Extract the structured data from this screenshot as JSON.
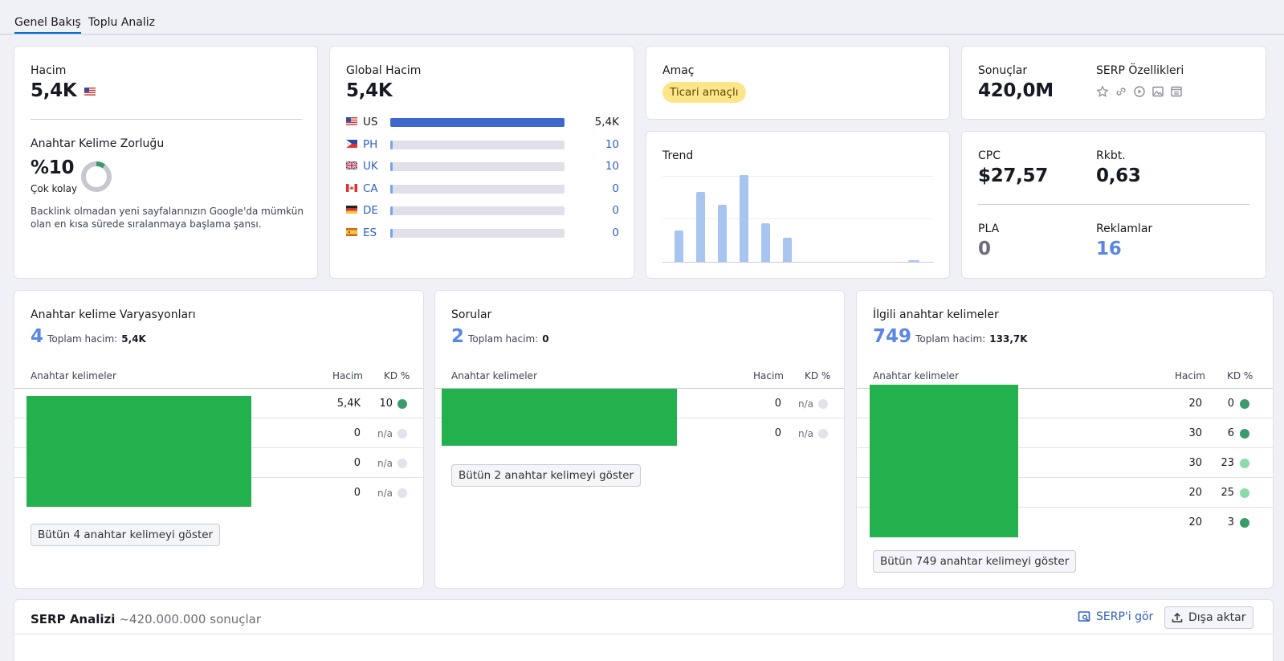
{
  "tabs": [
    "Genel Bakış",
    "Toplu Analiz"
  ],
  "volume": {
    "label": "Hacim",
    "value": "5,4K"
  },
  "kd": {
    "label": "Anahtar Kelime Zorluğu",
    "value": "%10",
    "level": "Çok kolay",
    "percent": 10,
    "description": "Backlink olmadan yeni sayfalarınızın Google'da mümkün olan en kısa sürede sıralanmaya başlama şansı."
  },
  "global_volume": {
    "label": "Global Hacim",
    "value": "5,4K",
    "countries": [
      {
        "code": "US",
        "value": "5,4K",
        "share": 1.0
      },
      {
        "code": "PH",
        "value": "10",
        "share": 0.002
      },
      {
        "code": "UK",
        "value": "10",
        "share": 0.002
      },
      {
        "code": "CA",
        "value": "0",
        "share": 0
      },
      {
        "code": "DE",
        "value": "0",
        "share": 0
      },
      {
        "code": "ES",
        "value": "0",
        "share": 0
      }
    ]
  },
  "intent": {
    "label": "Amaç",
    "badge": "Ticari amaçlı"
  },
  "trend": {
    "label": "Trend",
    "levels": [
      0.36,
      0.81,
      0.66,
      1.0,
      0.44,
      0.28,
      0,
      0,
      0,
      0,
      0,
      0.02
    ]
  },
  "results": {
    "label": "Sonuçlar",
    "value": "420,0M"
  },
  "serp_features": {
    "label": "SERP Özellikleri",
    "icons": [
      "star-icon",
      "link-icon",
      "play-icon",
      "image-icon",
      "ads-icon"
    ]
  },
  "cpc": {
    "label": "CPC",
    "value": "$27,57"
  },
  "competition": {
    "label": "Rkbt.",
    "value": "0,63"
  },
  "pla": {
    "label": "PLA",
    "value": "0"
  },
  "ads": {
    "label": "Reklamlar",
    "value": "16"
  },
  "variations": {
    "title": "Anahtar kelime Varyasyonları",
    "count": "4",
    "total_label": "Toplam hacim:",
    "total_value": "5,4K",
    "headers": [
      "Anahtar kelimeler",
      "Hacim",
      "KD %"
    ],
    "rows": [
      {
        "volume": "5,4K",
        "kd": "10"
      },
      {
        "volume": "0",
        "kd": "n/a"
      },
      {
        "volume": "0",
        "kd": "n/a"
      },
      {
        "volume": "0",
        "kd": "n/a"
      }
    ],
    "button": "Bütün 4 anahtar kelimeyi göster"
  },
  "questions": {
    "title": "Sorular",
    "count": "2",
    "total_label": "Toplam hacim:",
    "total_value": "0",
    "headers": [
      "Anahtar kelimeler",
      "Hacim",
      "KD %"
    ],
    "rows": [
      {
        "volume": "0",
        "kd": "n/a"
      },
      {
        "volume": "0",
        "kd": "n/a"
      }
    ],
    "button": "Bütün 2 anahtar kelimeyi göster"
  },
  "related": {
    "title": "İlgili anahtar kelimeler",
    "count": "749",
    "total_label": "Toplam hacim:",
    "total_value": "133,7K",
    "headers": [
      "Anahtar kelimeler",
      "Hacim",
      "KD %"
    ],
    "rows": [
      {
        "volume": "20",
        "kd": "0"
      },
      {
        "volume": "30",
        "kd": "6"
      },
      {
        "volume": "30",
        "kd": "23"
      },
      {
        "volume": "20",
        "kd": "25"
      },
      {
        "volume": "20",
        "kd": "3"
      }
    ],
    "button": "Bütün 749 anahtar kelimeyi göster"
  },
  "serp_analysis": {
    "title": "SERP Analizi",
    "results": "~420.000.000 sonuçlar",
    "view_serp": "SERP'i gör",
    "export": "Dışa aktar"
  },
  "colors": {
    "accent": "#3e68cf",
    "link": "#2f5fc3",
    "kd_green_dark": "#3c9b6b",
    "kd_green_light": "#8bdba9",
    "kd_na": "#e2e3ea",
    "intent_badge": "#fde68a"
  }
}
